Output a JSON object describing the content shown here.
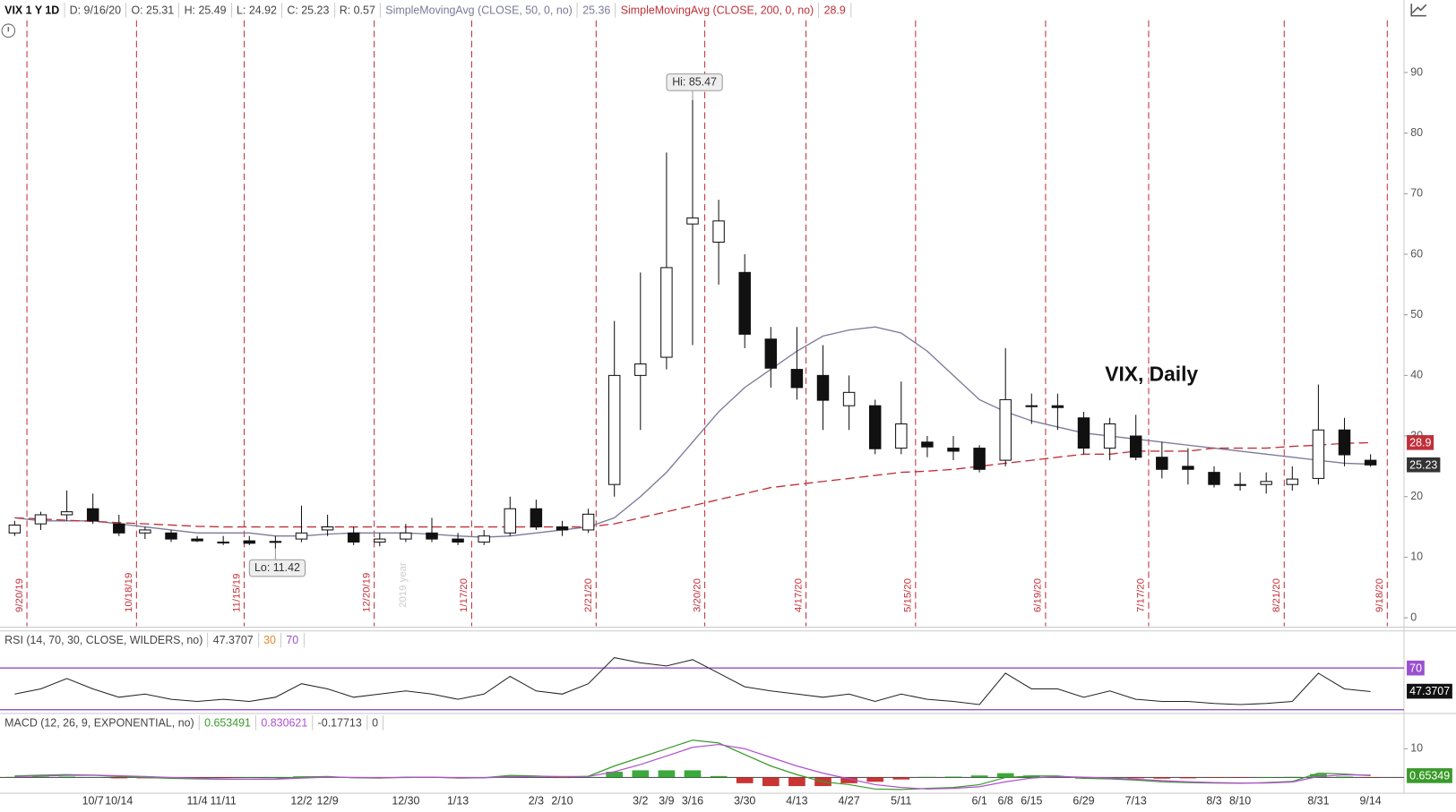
{
  "chart_data": [
    {
      "type": "candlestick",
      "header": {
        "symbol": "VIX 1 Y 1D",
        "date": "D: 9/16/20",
        "quote": [
          {
            "label": "O:",
            "value": 25.31
          },
          {
            "label": "H:",
            "value": 25.49
          },
          {
            "label": "L:",
            "value": 24.92
          },
          {
            "label": "C:",
            "value": 25.23
          },
          {
            "label": "R:",
            "value": 0.57
          }
        ]
      },
      "title": "VIX, Daily",
      "watermark": "2019 year",
      "categories": [
        null,
        null,
        null,
        "10/7",
        "10/14",
        null,
        null,
        "11/4",
        "11/11",
        null,
        null,
        "12/2",
        "12/9",
        null,
        null,
        "12/30",
        null,
        "1/13",
        null,
        null,
        "2/3",
        "2/10",
        null,
        null,
        "3/2",
        "3/9",
        "3/16",
        null,
        "3/30",
        null,
        "4/13",
        null,
        "4/27",
        null,
        "5/11",
        null,
        null,
        "6/1",
        "6/8",
        "6/15",
        null,
        "6/29",
        null,
        "7/13",
        null,
        null,
        "8/3",
        "8/10",
        null,
        null,
        "8/31",
        null,
        "9/14"
      ],
      "open": [
        14,
        15.5,
        17,
        18,
        15.5,
        14,
        14,
        13,
        12.5,
        12.7,
        12.5,
        13,
        14.5,
        14,
        12.5,
        13,
        14,
        13,
        12.5,
        14,
        18,
        15,
        14.5,
        22,
        40,
        43,
        65,
        62,
        57,
        46,
        41,
        40,
        35,
        35,
        28,
        29,
        28,
        28,
        26,
        35,
        35,
        33,
        28,
        30,
        26.5,
        25,
        24,
        22,
        22,
        22,
        23,
        31,
        26
      ],
      "high": [
        16,
        17.5,
        21,
        20.5,
        17,
        15,
        14.5,
        13.5,
        13.5,
        13.5,
        13.5,
        18.5,
        17,
        15,
        14,
        15.5,
        16.5,
        14,
        14.5,
        20,
        19.5,
        16,
        18,
        49,
        57,
        76.8,
        85.47,
        69,
        60,
        48,
        48,
        45,
        40,
        36,
        39,
        30,
        30,
        28.5,
        44.5,
        37,
        37,
        34,
        33,
        33.5,
        29,
        28,
        25,
        24,
        24,
        25,
        38.5,
        33,
        27
      ],
      "low": [
        13.5,
        14.5,
        16,
        15.5,
        13.5,
        13,
        12.5,
        12.5,
        12,
        12,
        11.42,
        12.5,
        13.5,
        12,
        11.8,
        12.5,
        12.5,
        12,
        12,
        13.5,
        14.5,
        13.5,
        14,
        20,
        31,
        41,
        45,
        55,
        44.5,
        38,
        36,
        31,
        31,
        27,
        27,
        26.5,
        26,
        24,
        25,
        32,
        31,
        27,
        26,
        26,
        23,
        22,
        21.5,
        21,
        20.5,
        21,
        22,
        25,
        24.92
      ],
      "close": [
        15.3,
        17,
        17.5,
        16,
        14,
        14.5,
        13,
        12.7,
        12.5,
        12.3,
        12.6,
        14,
        15,
        12.5,
        13,
        14,
        13,
        12.5,
        13.5,
        18,
        15,
        14.5,
        17.1,
        40,
        41.9,
        57.8,
        66,
        65.5,
        46.8,
        41.2,
        38,
        35.9,
        37.2,
        27.9,
        32,
        28.2,
        27.5,
        24.5,
        36,
        35,
        34.7,
        28,
        32,
        26.5,
        24.5,
        24.5,
        22,
        22,
        22.5,
        22.9,
        31,
        26.9,
        25.23
      ],
      "overlays": [
        {
          "name": "SimpleMovingAvg (CLOSE, 50, 0, no)",
          "color": "#7a7a9a",
          "dashed": false,
          "values": [
            16.5,
            16,
            16,
            16,
            15.5,
            15,
            14.5,
            14,
            14,
            14,
            13.5,
            13.5,
            13.8,
            14,
            14,
            14,
            13.8,
            13.5,
            13.3,
            13.5,
            14,
            14.5,
            15,
            16.5,
            20,
            24,
            29,
            34,
            38,
            41,
            44,
            46.5,
            47.5,
            48,
            47,
            44,
            40,
            36,
            34,
            32.5,
            31.5,
            30.5,
            30,
            29.5,
            29,
            28.5,
            28,
            27.5,
            27,
            26.5,
            26,
            25.5,
            25.36
          ]
        },
        {
          "name": "SimpleMovingAvg (CLOSE, 200, 0, no)",
          "color": "#c0303a",
          "dashed": true,
          "values": [
            16.5,
            16.3,
            16.1,
            15.9,
            15.7,
            15.5,
            15.3,
            15.1,
            15,
            15,
            15,
            15,
            15,
            15,
            15,
            15,
            15,
            15,
            15,
            15,
            15,
            15,
            15,
            15.5,
            16.5,
            17.5,
            18.5,
            19.5,
            20.5,
            21.5,
            22,
            22.5,
            23,
            23.5,
            24,
            24.2,
            24.5,
            25,
            25.5,
            26,
            26.5,
            27,
            27,
            27.5,
            27.5,
            27.5,
            28,
            28,
            28,
            28.3,
            28.5,
            28.8,
            28.9
          ]
        }
      ],
      "annotations": [
        {
          "label": "Hi:",
          "at": "high",
          "index": 26
        },
        {
          "label": "Lo:",
          "at": "low",
          "index": 10
        }
      ],
      "markers": [
        "9/20/19",
        "10/18/19",
        "11/15/19",
        "12/20/19",
        "1/17/20",
        "2/21/20",
        "3/20/20",
        "4/17/20",
        "5/15/20",
        "6/19/20",
        "7/17/20",
        "8/21/20",
        "9/18/20"
      ],
      "marker_color": "#c0303a",
      "ylim": [
        -1.4,
        98.6
      ],
      "yticks": [
        0,
        10,
        20,
        30,
        40,
        50,
        60,
        70,
        80,
        90
      ]
    },
    {
      "type": "line",
      "name": "RSI (14, 70, 30, CLOSE, WILDERS, no)",
      "levels": [
        30,
        70
      ],
      "level_colors": [
        "#e08a2c",
        "#9a4fd0"
      ],
      "level_line_color": "#8a3fc0",
      "series": [
        {
          "color": "#222222",
          "values": [
            45,
            50,
            60,
            50,
            42,
            45,
            40,
            38,
            40,
            38,
            42,
            55,
            50,
            42,
            45,
            48,
            45,
            40,
            45,
            62,
            48,
            45,
            55,
            80,
            75,
            72,
            78,
            65,
            52,
            48,
            45,
            42,
            45,
            38,
            45,
            40,
            38,
            35,
            65,
            50,
            50,
            42,
            48,
            40,
            38,
            38,
            36,
            35,
            36,
            38,
            65,
            50,
            47.3707
          ]
        }
      ],
      "ylim": [
        28.2,
        87.8
      ]
    },
    {
      "type": "macd",
      "name": "MACD (12, 26, 9, EXPONENTIAL, no)",
      "series": [
        {
          "color": "#3a9a2a",
          "values": [
            0.5,
            0.8,
            1.0,
            0.8,
            0.3,
            0,
            -0.3,
            -0.5,
            -0.6,
            -0.6,
            -0.5,
            0.2,
            0.3,
            -0.1,
            -0.2,
            0.1,
            0.1,
            -0.2,
            -0.1,
            0.7,
            0.5,
            0.1,
            0.4,
            4,
            7,
            10,
            13,
            12,
            8,
            4,
            1,
            -1.5,
            -2.5,
            -4,
            -4.2,
            -3.8,
            -3.5,
            -2.5,
            0,
            0.5,
            0.5,
            -0.3,
            -0.5,
            -0.9,
            -1.5,
            -1.8,
            -1.9,
            -2,
            -1.8,
            -1.4,
            1.5,
            1.2,
            0.653491
          ]
        },
        {
          "color": "#b050d0",
          "values": [
            0.3,
            0.5,
            0.7,
            0.8,
            0.6,
            0.3,
            0,
            -0.3,
            -0.5,
            -0.6,
            -0.6,
            -0.2,
            0.1,
            0,
            -0.1,
            0,
            0.1,
            -0.1,
            -0.1,
            0.2,
            0.4,
            0.3,
            0.3,
            2,
            4.5,
            7.5,
            10.5,
            11.5,
            10,
            7,
            4,
            1.5,
            -0.5,
            -2.5,
            -3.5,
            -4,
            -3.8,
            -3.2,
            -1.5,
            -0.2,
            0.3,
            0.1,
            -0.2,
            -0.6,
            -1.1,
            -1.5,
            -1.8,
            -1.9,
            -1.9,
            -1.6,
            0.3,
            0.9,
            0.830621
          ]
        },
        {
          "colors": [
            "#1a9a1a",
            "#c01010"
          ],
          "values": [
            0.2,
            0.3,
            0.3,
            0,
            -0.3,
            -0.3,
            -0.3,
            -0.2,
            -0.1,
            0,
            0.1,
            0.4,
            0.2,
            -0.1,
            -0.1,
            0.1,
            0,
            -0.1,
            0,
            0.5,
            0.1,
            -0.2,
            0.1,
            2,
            2.5,
            2.5,
            2.5,
            0.5,
            -2,
            -3,
            -3,
            -3,
            -2,
            -1.5,
            -0.7,
            0.2,
            0.3,
            0.7,
            1.5,
            0.7,
            0.2,
            -0.4,
            -0.3,
            -0.3,
            -0.4,
            -0.3,
            -0.1,
            -0.1,
            0.1,
            0.2,
            1.2,
            0.3,
            -0.17713
          ]
        }
      ],
      "zero_line": 0,
      "last_label": "0.65349",
      "ylim": [
        -5.5,
        15.5
      ],
      "yticks": [
        10
      ]
    }
  ]
}
